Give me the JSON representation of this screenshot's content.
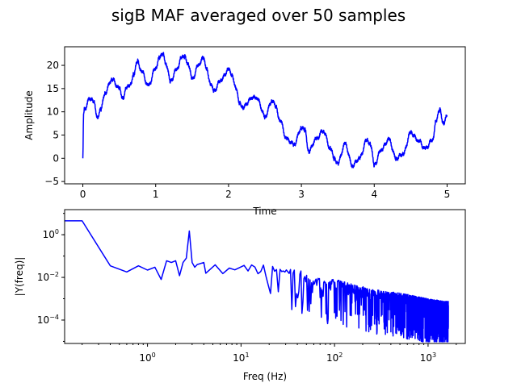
{
  "figure_title": "sigB MAF averaged over 50 samples",
  "chart_data": [
    {
      "type": "line",
      "title": "",
      "xlabel": "Time",
      "ylabel": "Amplitude",
      "xlim": [
        -0.25,
        5.25
      ],
      "ylim": [
        -5.5,
        24
      ],
      "xticks": [
        0,
        1,
        2,
        3,
        4,
        5
      ],
      "xtick_labels": [
        "0",
        "1",
        "2",
        "3",
        "4",
        "5"
      ],
      "yticks": [
        -5,
        0,
        5,
        10,
        15,
        20
      ],
      "ytick_labels": [
        "−5",
        "0",
        "5",
        "10",
        "15",
        "20"
      ],
      "line_color": "#0000ff",
      "grid": false,
      "series": [
        {
          "x": [
            0,
            0.01,
            0.02,
            0.1,
            0.15,
            0.2,
            0.25,
            0.3,
            0.4,
            0.5,
            0.55,
            0.6,
            0.65,
            0.7,
            0.75,
            0.8,
            0.9,
            1.0,
            1.05,
            1.1,
            1.15,
            1.2,
            1.3,
            1.35,
            1.4,
            1.45,
            1.5,
            1.6,
            1.65,
            1.7,
            1.75,
            1.8,
            1.9,
            2.0,
            2.05,
            2.1,
            2.15,
            2.2,
            2.3,
            2.35,
            2.4,
            2.5,
            2.6,
            2.65,
            2.7,
            2.8,
            2.9,
            3.0,
            3.05,
            3.1,
            3.2,
            3.3,
            3.4,
            3.45,
            3.5,
            3.6,
            3.7,
            3.8,
            3.9,
            3.95,
            4.0,
            4.1,
            4.2,
            4.3,
            4.4,
            4.5,
            4.6,
            4.7,
            4.8,
            4.85,
            4.9,
            4.95,
            5.0
          ],
          "y": [
            0,
            9.5,
            10.5,
            13.0,
            12.0,
            9.0,
            10.5,
            14.0,
            17.0,
            15.0,
            13.0,
            15.0,
            16.0,
            18.0,
            21.0,
            19.0,
            15.5,
            19.5,
            21.5,
            22.5,
            20.0,
            16.5,
            19.5,
            21.5,
            22.0,
            20.0,
            17.0,
            20.5,
            21.5,
            19.5,
            16.0,
            14.5,
            17.0,
            19.0,
            18.0,
            15.0,
            12.0,
            11.0,
            12.5,
            13.5,
            12.5,
            9.0,
            12.5,
            11.0,
            8.5,
            4.0,
            3.0,
            6.5,
            6.0,
            1.5,
            4.0,
            6.0,
            2.0,
            0.0,
            -1.0,
            3.0,
            -1.5,
            0.0,
            4.0,
            3.0,
            -1.5,
            2.0,
            4.0,
            0.0,
            1.0,
            5.5,
            4.0,
            2.0,
            4.0,
            8.0,
            10.5,
            7.5,
            9.0
          ]
        }
      ]
    },
    {
      "type": "line",
      "title": "",
      "xlabel": "Freq (Hz)",
      "ylabel": "|Y(freq)|",
      "xscale": "log",
      "yscale": "log",
      "xlim": [
        0.13,
        2500
      ],
      "ylim": [
        8e-06,
        15
      ],
      "xticks": [
        1,
        10,
        100,
        1000
      ],
      "xtick_labels": [
        "10^0",
        "10^1",
        "10^2",
        "10^3"
      ],
      "yticks": [
        0.0001,
        0.01,
        1
      ],
      "ytick_labels": [
        "10^−4",
        "10^−2",
        "10^0"
      ],
      "line_color": "#0000ff",
      "grid": false,
      "series": [
        {
          "x": [
            0.13,
            0.2,
            0.4,
            0.6,
            0.8,
            1.0,
            1.2,
            1.4,
            1.6,
            1.8,
            2.0,
            2.2,
            2.4,
            2.6,
            2.8,
            3.0,
            3.2,
            3.4,
            4.0,
            5.0,
            6.0,
            8.0,
            10.0,
            15.0,
            20.0,
            30.0,
            50.0,
            80.0,
            100.0,
            150.0,
            200.0,
            300.0,
            500.0,
            800.0,
            1000.0,
            1500.0,
            1650.0
          ],
          "y": [
            4.5,
            4.5,
            0.035,
            0.018,
            0.035,
            0.022,
            0.03,
            0.008,
            0.06,
            0.05,
            0.06,
            0.012,
            0.05,
            0.08,
            1.5,
            0.05,
            0.03,
            0.04,
            0.05,
            0.03,
            0.04,
            0.03,
            0.04,
            0.04,
            0.03,
            0.02,
            0.015,
            0.006,
            0.007,
            0.004,
            0.003,
            0.002,
            0.0015,
            0.001,
            0.0008,
            0.0006,
            0.0006
          ]
        }
      ]
    }
  ]
}
